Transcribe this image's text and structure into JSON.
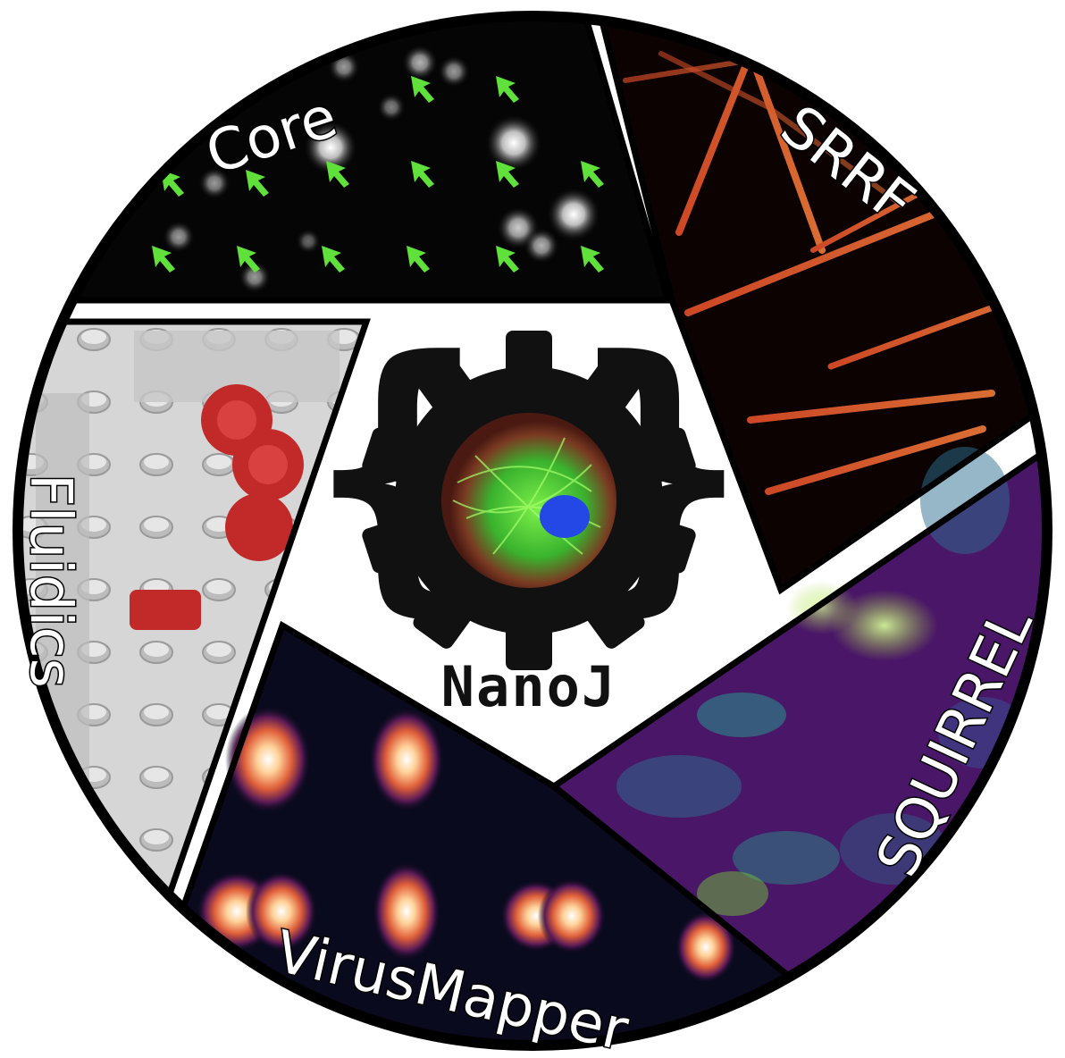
{
  "logo": {
    "title": "NanoJ",
    "modules": [
      {
        "key": "core",
        "label": "Core"
      },
      {
        "key": "srrf",
        "label": "SRRF"
      },
      {
        "key": "squirrel",
        "label": "SQUIRREL"
      },
      {
        "key": "virusmapper",
        "label": "VirusMapper"
      },
      {
        "key": "fluidics",
        "label": "Fluidics"
      }
    ]
  },
  "colors": {
    "outline": "#000000",
    "background": "#ffffff",
    "core_bg": "#050505",
    "core_arrows": "#5fe03a",
    "srrf_bg": "#0c0202",
    "srrf_filament": "#e2502a",
    "squirrel_bg": "#4a1668",
    "squirrel_highlight": "#9fd235",
    "virus_bg": "#0a0a1e",
    "virus_spot": "#ffb070",
    "fluidics_bg": "#d8d8d8",
    "fluidics_gear": "#c22a2a",
    "cell_green": "#3ad13a",
    "cell_blue": "#2448e6",
    "cell_red": "#c23a2a"
  },
  "icons": [
    "gear-icon",
    "curly-brace-left-icon",
    "curly-brace-right-icon",
    "arrow-icon"
  ]
}
